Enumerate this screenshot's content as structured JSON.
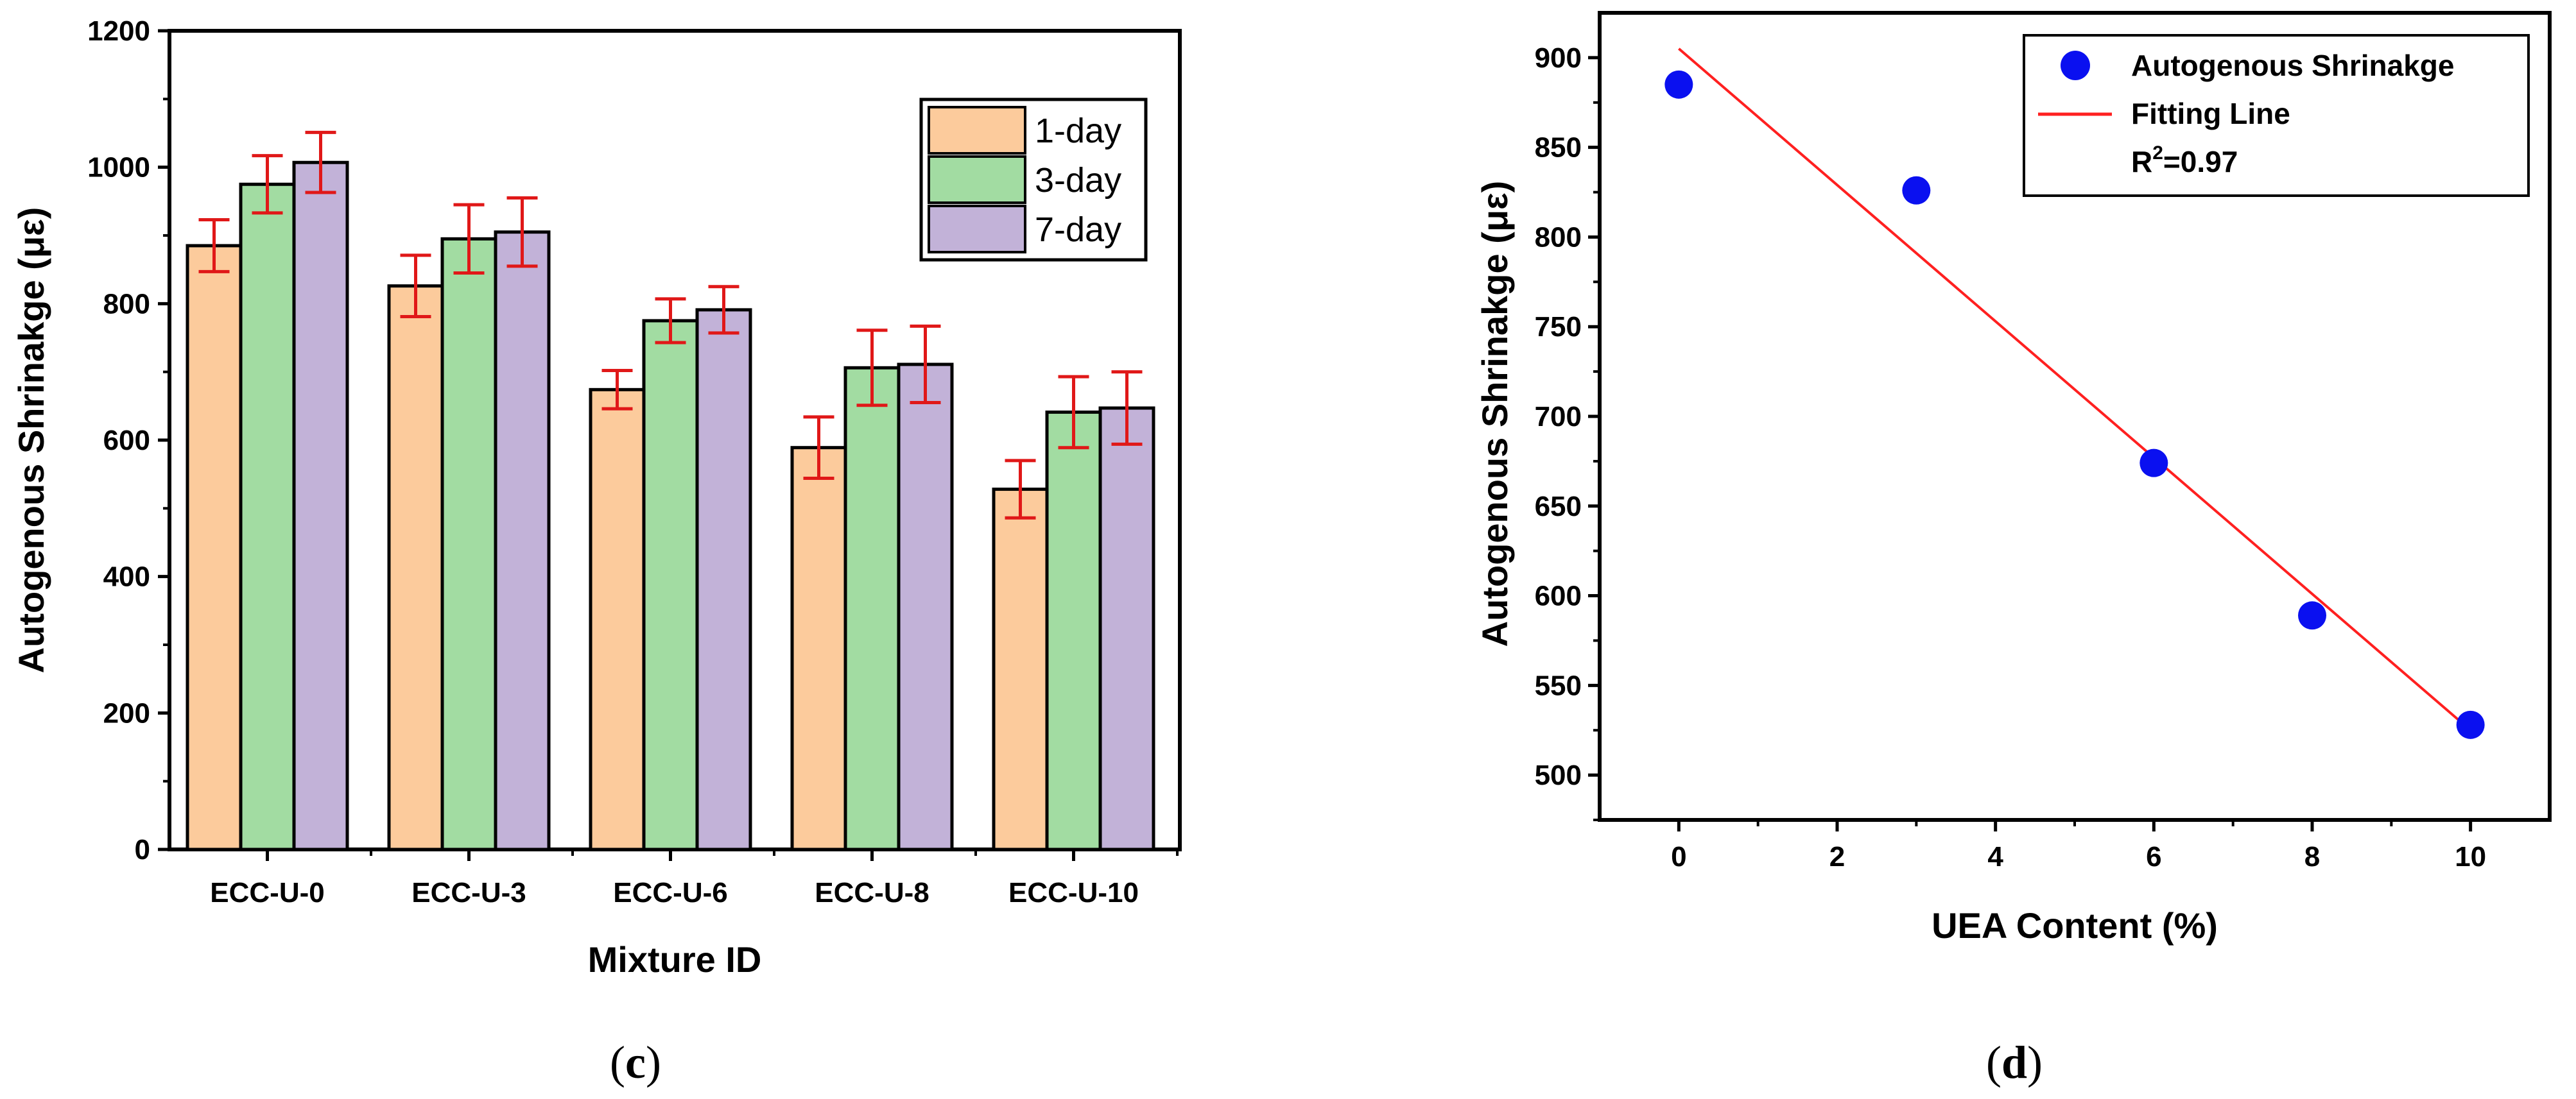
{
  "chart_data": [
    {
      "type": "bar",
      "panel_label": "c",
      "title": "",
      "xlabel": "Mixture ID",
      "ylabel": "Autogenous Shrinakge (με)",
      "ylim": [
        0,
        1200
      ],
      "yticks": [
        0,
        200,
        400,
        600,
        800,
        1000,
        1200
      ],
      "categories": [
        "ECC-U-0",
        "ECC-U-3",
        "ECC-U-6",
        "ECC-U-8",
        "ECC-U-10"
      ],
      "legend_position": "top-right",
      "series": [
        {
          "name": "1-day",
          "color": "#FCCB9C",
          "values": [
            885,
            826,
            674,
            589,
            528
          ],
          "errors": [
            38,
            45,
            28,
            45,
            42
          ]
        },
        {
          "name": "3-day",
          "color": "#A2DCA2",
          "values": [
            975,
            895,
            775,
            706,
            641
          ],
          "errors": [
            42,
            50,
            32,
            55,
            52
          ]
        },
        {
          "name": "7-day",
          "color": "#C2B2D8",
          "values": [
            1007,
            905,
            791,
            711,
            647
          ],
          "errors": [
            44,
            50,
            34,
            56,
            53
          ]
        }
      ],
      "error_color": "#E01818"
    },
    {
      "type": "scatter",
      "panel_label": "d",
      "title": "",
      "xlabel": "UEA Content (%)",
      "ylabel": "Autogenous Shrinakge (με)",
      "xlim": [
        -1,
        11
      ],
      "ylim": [
        475,
        925
      ],
      "xticks": [
        0,
        2,
        4,
        6,
        8,
        10
      ],
      "yticks": [
        500,
        550,
        600,
        650,
        700,
        750,
        800,
        850,
        900
      ],
      "legend_position": "top-right",
      "points": {
        "name": "Autogenous Shrinakge",
        "color": "#0A10F0",
        "x": [
          0,
          3,
          6,
          8,
          10
        ],
        "y": [
          885,
          826,
          674,
          589,
          528
        ]
      },
      "fit_line": {
        "name": "Fitting Line",
        "color": "#FF2020",
        "x": [
          0,
          10
        ],
        "y": [
          905,
          525
        ]
      },
      "r2_label_base": "R",
      "r2_label_sup": "2",
      "r2_label_value": "=0.97"
    }
  ]
}
